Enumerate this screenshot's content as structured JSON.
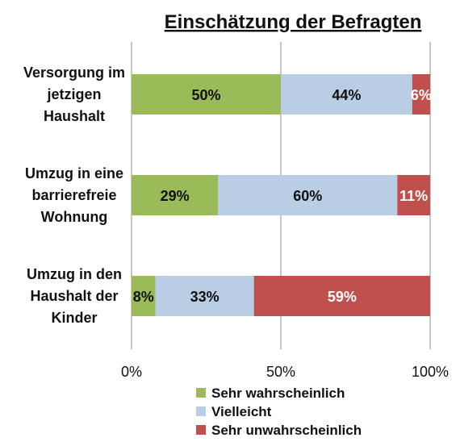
{
  "chart_data": {
    "type": "bar",
    "orientation": "horizontal",
    "stacked": true,
    "percent_stacked": true,
    "title": "Einschätzung der Befragten",
    "categories": [
      [
        "Versorgung im",
        "jetzigen",
        "Haushalt"
      ],
      [
        "Umzug in eine",
        "barrierefreie",
        "Wohnung"
      ],
      [
        "Umzug in den",
        "Haushalt der",
        "Kinder"
      ]
    ],
    "series": [
      {
        "name": "Sehr wahrscheinlich",
        "color": "#9bbb59",
        "label_color": "#111111",
        "values": [
          50,
          29,
          8
        ],
        "labels": [
          "50%",
          "29%",
          "8%"
        ]
      },
      {
        "name": "Vielleicht",
        "color": "#b9cde5",
        "label_color": "#111111",
        "values": [
          44,
          60,
          33
        ],
        "labels": [
          "44%",
          "60%",
          "33%"
        ]
      },
      {
        "name": "Sehr unwahrscheinlich",
        "color": "#c0504d",
        "label_color": "#ffffff",
        "values": [
          6,
          11,
          59
        ],
        "labels": [
          "6%",
          "11%",
          "59%"
        ]
      }
    ],
    "xlim": [
      0,
      100
    ],
    "xticks": [
      "0%",
      "50%",
      "100%"
    ],
    "grid": true,
    "legend_position": "bottom"
  }
}
